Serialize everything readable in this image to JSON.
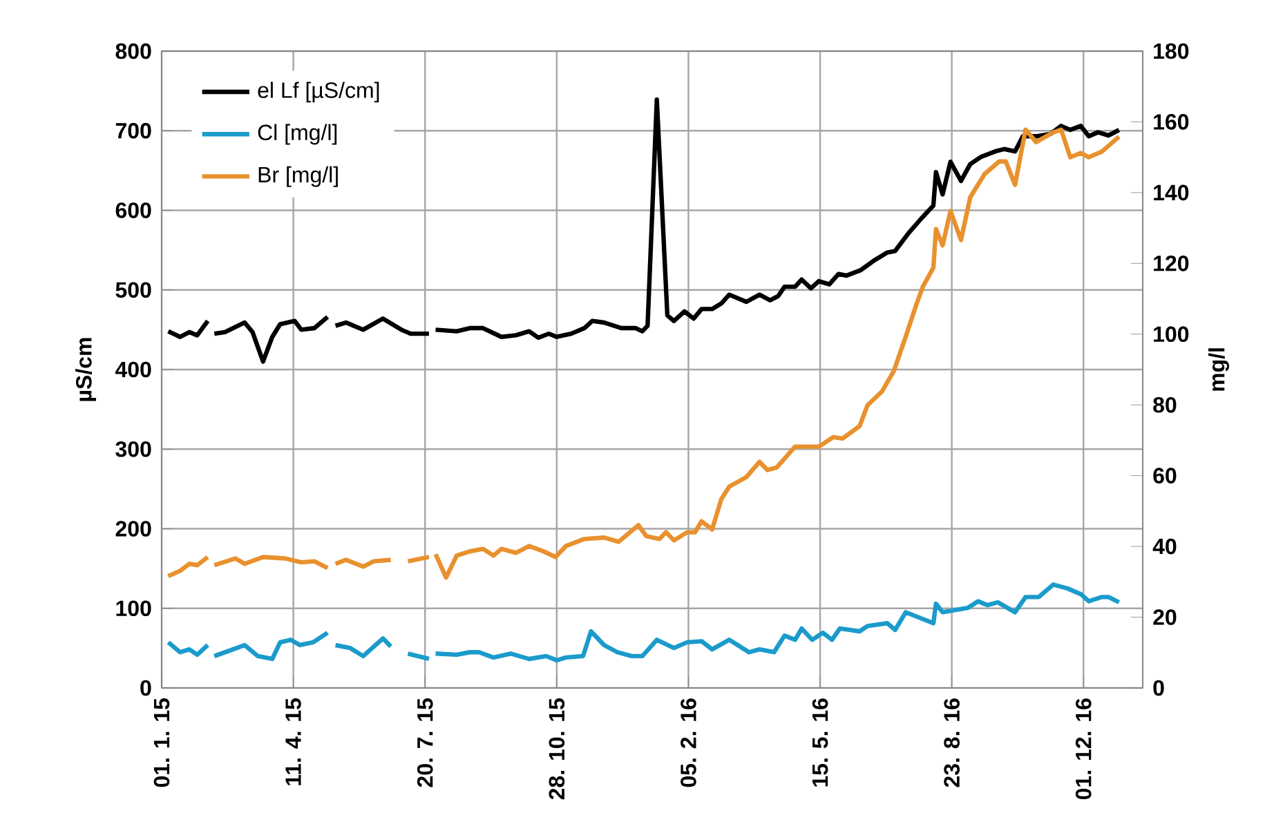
{
  "chart_data": {
    "type": "line",
    "ylabel": "µS/cm",
    "y2label": "mg/l",
    "grid": true,
    "legend": "top left",
    "xlim": [
      "2015-01-01",
      "2017-01-15"
    ],
    "xticks": [
      {
        "value": "2015-01-01",
        "label": "01. 1. 15"
      },
      {
        "value": "2015-04-11",
        "label": "11. 4. 15"
      },
      {
        "value": "2015-07-20",
        "label": "20. 7. 15"
      },
      {
        "value": "2015-10-28",
        "label": "28. 10. 15"
      },
      {
        "value": "2016-02-05",
        "label": "05. 2. 16"
      },
      {
        "value": "2016-05-15",
        "label": "15. 5. 16"
      },
      {
        "value": "2016-08-23",
        "label": "23. 8. 16"
      },
      {
        "value": "2016-12-01",
        "label": "01. 12. 16"
      }
    ],
    "ylim": [
      0,
      800
    ],
    "yticks": [
      0,
      100,
      200,
      300,
      400,
      500,
      600,
      700,
      800
    ],
    "y2lim": [
      0,
      180
    ],
    "y2ticks": [
      0,
      20,
      40,
      60,
      80,
      100,
      120,
      140,
      160,
      180
    ],
    "series": [
      {
        "name": "el Lf [µS/cm]",
        "color": "#000000",
        "x": [
          "2015-01-06",
          "2015-01-15",
          "2015-01-22",
          "2015-01-28",
          "2015-02-05",
          "2015-02-08",
          "2015-02-10",
          "2015-02-18",
          "2015-03-05",
          "2015-03-11",
          "2015-03-19",
          "2015-03-26",
          "2015-04-01",
          "2015-04-12",
          "2015-04-17",
          "2015-04-27",
          "2015-05-07",
          "2015-05-10",
          "2015-05-13",
          "2015-05-21",
          "2015-06-03",
          "2015-06-18",
          "2015-07-02",
          "2015-07-09",
          "2015-07-23",
          "2015-07-25",
          "2015-07-28",
          "2015-08-13",
          "2015-08-23",
          "2015-09-02",
          "2015-09-16",
          "2015-09-27",
          "2015-10-07",
          "2015-10-14",
          "2015-10-22",
          "2015-10-28",
          "2015-11-08",
          "2015-11-18",
          "2015-11-24",
          "2015-12-03",
          "2015-12-16",
          "2015-12-27",
          "2016-01-01",
          "2016-01-05",
          "2016-01-12",
          "2016-01-20",
          "2016-01-25",
          "2016-02-02",
          "2016-02-09",
          "2016-02-15",
          "2016-02-23",
          "2016-03-01",
          "2016-03-07",
          "2016-03-20",
          "2016-03-30",
          "2016-04-07",
          "2016-04-13",
          "2016-04-18",
          "2016-04-26",
          "2016-05-01",
          "2016-05-08",
          "2016-05-14",
          "2016-05-22",
          "2016-05-29",
          "2016-06-04",
          "2016-06-15",
          "2016-06-25",
          "2016-07-05",
          "2016-07-11",
          "2016-07-21",
          "2016-07-31",
          "2016-08-09",
          "2016-08-11",
          "2016-08-16",
          "2016-08-22",
          "2016-08-30",
          "2016-09-06",
          "2016-09-14",
          "2016-09-25",
          "2016-10-02",
          "2016-10-10",
          "2016-10-16",
          "2016-10-26",
          "2016-11-06",
          "2016-11-14",
          "2016-11-21",
          "2016-11-29",
          "2016-12-05",
          "2016-12-12",
          "2016-12-20",
          "2016-12-28"
        ],
        "values": [
          448,
          441,
          447,
          443,
          461,
          null,
          445,
          447,
          459,
          447,
          410,
          441,
          457,
          461,
          450,
          452,
          466,
          null,
          455,
          459,
          450,
          464,
          450,
          445,
          445,
          null,
          450,
          448,
          452,
          452,
          441,
          443,
          448,
          440,
          445,
          441,
          445,
          452,
          461,
          459,
          452,
          452,
          448,
          455,
          739,
          468,
          461,
          473,
          464,
          476,
          476,
          483,
          494,
          485,
          494,
          487,
          492,
          504,
          504,
          513,
          502,
          511,
          507,
          520,
          518,
          525,
          537,
          547,
          549,
          571,
          590,
          606,
          648,
          620,
          661,
          637,
          658,
          667,
          674,
          677,
          674,
          693,
          693,
          696,
          706,
          701,
          706,
          693,
          698,
          694,
          701
        ]
      },
      {
        "name": "Cl [mg/l]",
        "color": "#1b9bcb",
        "axis": "y2",
        "x": [
          "2015-01-06",
          "2015-01-15",
          "2015-01-22",
          "2015-01-28",
          "2015-02-05",
          "2015-02-08",
          "2015-02-10",
          "2015-03-05",
          "2015-03-15",
          "2015-03-26",
          "2015-04-01",
          "2015-04-09",
          "2015-04-16",
          "2015-04-26",
          "2015-05-07",
          "2015-05-10",
          "2015-05-13",
          "2015-05-24",
          "2015-06-03",
          "2015-06-18",
          "2015-06-24",
          "2015-06-30",
          "2015-07-07",
          "2015-07-23",
          "2015-07-25",
          "2015-07-28",
          "2015-08-13",
          "2015-08-23",
          "2015-08-30",
          "2015-09-10",
          "2015-09-23",
          "2015-10-07",
          "2015-10-20",
          "2015-10-28",
          "2015-11-04",
          "2015-11-17",
          "2015-11-23",
          "2015-12-03",
          "2015-12-13",
          "2015-12-24",
          "2016-01-01",
          "2016-01-12",
          "2016-01-25",
          "2016-02-04",
          "2016-02-15",
          "2016-02-23",
          "2016-03-07",
          "2016-03-22",
          "2016-03-30",
          "2016-04-10",
          "2016-04-18",
          "2016-04-26",
          "2016-05-01",
          "2016-05-09",
          "2016-05-17",
          "2016-05-24",
          "2016-05-30",
          "2016-06-14",
          "2016-06-20",
          "2016-07-05",
          "2016-07-11",
          "2016-07-19",
          "2016-08-09",
          "2016-08-11",
          "2016-08-16",
          "2016-09-04",
          "2016-09-12",
          "2016-09-19",
          "2016-09-27",
          "2016-10-10",
          "2016-10-18",
          "2016-10-28",
          "2016-11-08",
          "2016-11-19",
          "2016-11-29",
          "2016-12-05",
          "2016-12-15",
          "2016-12-20",
          "2016-12-28"
        ],
        "values": [
          12.9,
          10.1,
          10.9,
          9.4,
          12.1,
          null,
          9.0,
          12.1,
          9.0,
          8.2,
          12.9,
          13.6,
          12.1,
          12.9,
          15.6,
          null,
          12.1,
          11.3,
          9.0,
          14.0,
          11.7,
          null,
          9.7,
          8.2,
          null,
          9.7,
          9.4,
          10.1,
          10.1,
          8.6,
          9.7,
          8.2,
          9.0,
          7.8,
          8.6,
          9.0,
          16.0,
          12.1,
          10.1,
          9.0,
          9.0,
          13.6,
          11.3,
          12.9,
          13.2,
          10.9,
          13.6,
          10.1,
          10.9,
          10.1,
          14.8,
          13.6,
          16.8,
          13.6,
          15.6,
          13.6,
          16.8,
          16.0,
          17.5,
          18.3,
          16.4,
          21.4,
          18.3,
          23.8,
          21.4,
          22.6,
          24.5,
          23.4,
          24.2,
          21.4,
          25.7,
          25.7,
          29.2,
          28.1,
          26.5,
          24.5,
          25.7,
          25.7,
          24.2
        ]
      },
      {
        "name": "Br [mg/l]",
        "color": "#e8912e",
        "axis": "y2",
        "x": [
          "2015-01-06",
          "2015-01-15",
          "2015-01-22",
          "2015-01-28",
          "2015-02-05",
          "2015-02-08",
          "2015-02-10",
          "2015-02-26",
          "2015-03-05",
          "2015-03-19",
          "2015-04-05",
          "2015-04-17",
          "2015-04-27",
          "2015-05-07",
          "2015-05-10",
          "2015-05-13",
          "2015-05-21",
          "2015-06-03",
          "2015-06-11",
          "2015-06-24",
          "2015-06-30",
          "2015-07-07",
          "2015-07-23",
          "2015-07-25",
          "2015-07-28",
          "2015-08-05",
          "2015-08-13",
          "2015-08-23",
          "2015-09-02",
          "2015-09-10",
          "2015-09-16",
          "2015-09-27",
          "2015-10-07",
          "2015-10-18",
          "2015-10-27",
          "2015-11-04",
          "2015-11-18",
          "2015-12-03",
          "2015-12-14",
          "2015-12-29",
          "2016-01-04",
          "2016-01-14",
          "2016-01-19",
          "2016-01-25",
          "2016-02-04",
          "2016-02-10",
          "2016-02-15",
          "2016-02-23",
          "2016-03-01",
          "2016-03-07",
          "2016-03-20",
          "2016-03-30",
          "2016-04-05",
          "2016-04-12",
          "2016-04-26",
          "2016-05-01",
          "2016-05-14",
          "2016-05-25",
          "2016-06-01",
          "2016-06-14",
          "2016-06-20",
          "2016-07-01",
          "2016-07-10",
          "2016-07-19",
          "2016-07-27",
          "2016-08-01",
          "2016-08-09",
          "2016-08-11",
          "2016-08-16",
          "2016-08-22",
          "2016-08-30",
          "2016-09-06",
          "2016-09-17",
          "2016-09-28",
          "2016-10-03",
          "2016-10-10",
          "2016-10-18",
          "2016-10-26",
          "2016-11-08",
          "2016-11-14",
          "2016-11-21",
          "2016-11-29",
          "2016-12-05",
          "2016-12-15",
          "2016-12-28"
        ],
        "values": [
          31.6,
          33.1,
          35.1,
          34.7,
          37.0,
          null,
          34.7,
          36.6,
          35.1,
          37.0,
          36.6,
          35.5,
          35.8,
          33.9,
          null,
          35.1,
          36.2,
          34.3,
          35.8,
          36.2,
          null,
          35.8,
          37.0,
          null,
          37.8,
          31.2,
          37.4,
          38.6,
          39.3,
          37.4,
          39.3,
          38.2,
          40.1,
          38.6,
          37.0,
          40.1,
          42.1,
          42.5,
          41.3,
          46.0,
          42.9,
          42.1,
          44.0,
          41.7,
          44.0,
          44.0,
          47.1,
          44.8,
          53.4,
          56.9,
          59.6,
          63.9,
          61.6,
          62.3,
          68.2,
          68.2,
          68.2,
          70.9,
          70.5,
          74.0,
          79.9,
          83.8,
          89.6,
          99.3,
          108.3,
          113.4,
          118.8,
          129.7,
          125.1,
          134.8,
          126.6,
          138.7,
          145.3,
          148.8,
          148.8,
          142.2,
          157.8,
          154.3,
          157.0,
          157.8,
          150.0,
          151.2,
          150.0,
          151.6,
          155.8
        ]
      }
    ]
  }
}
